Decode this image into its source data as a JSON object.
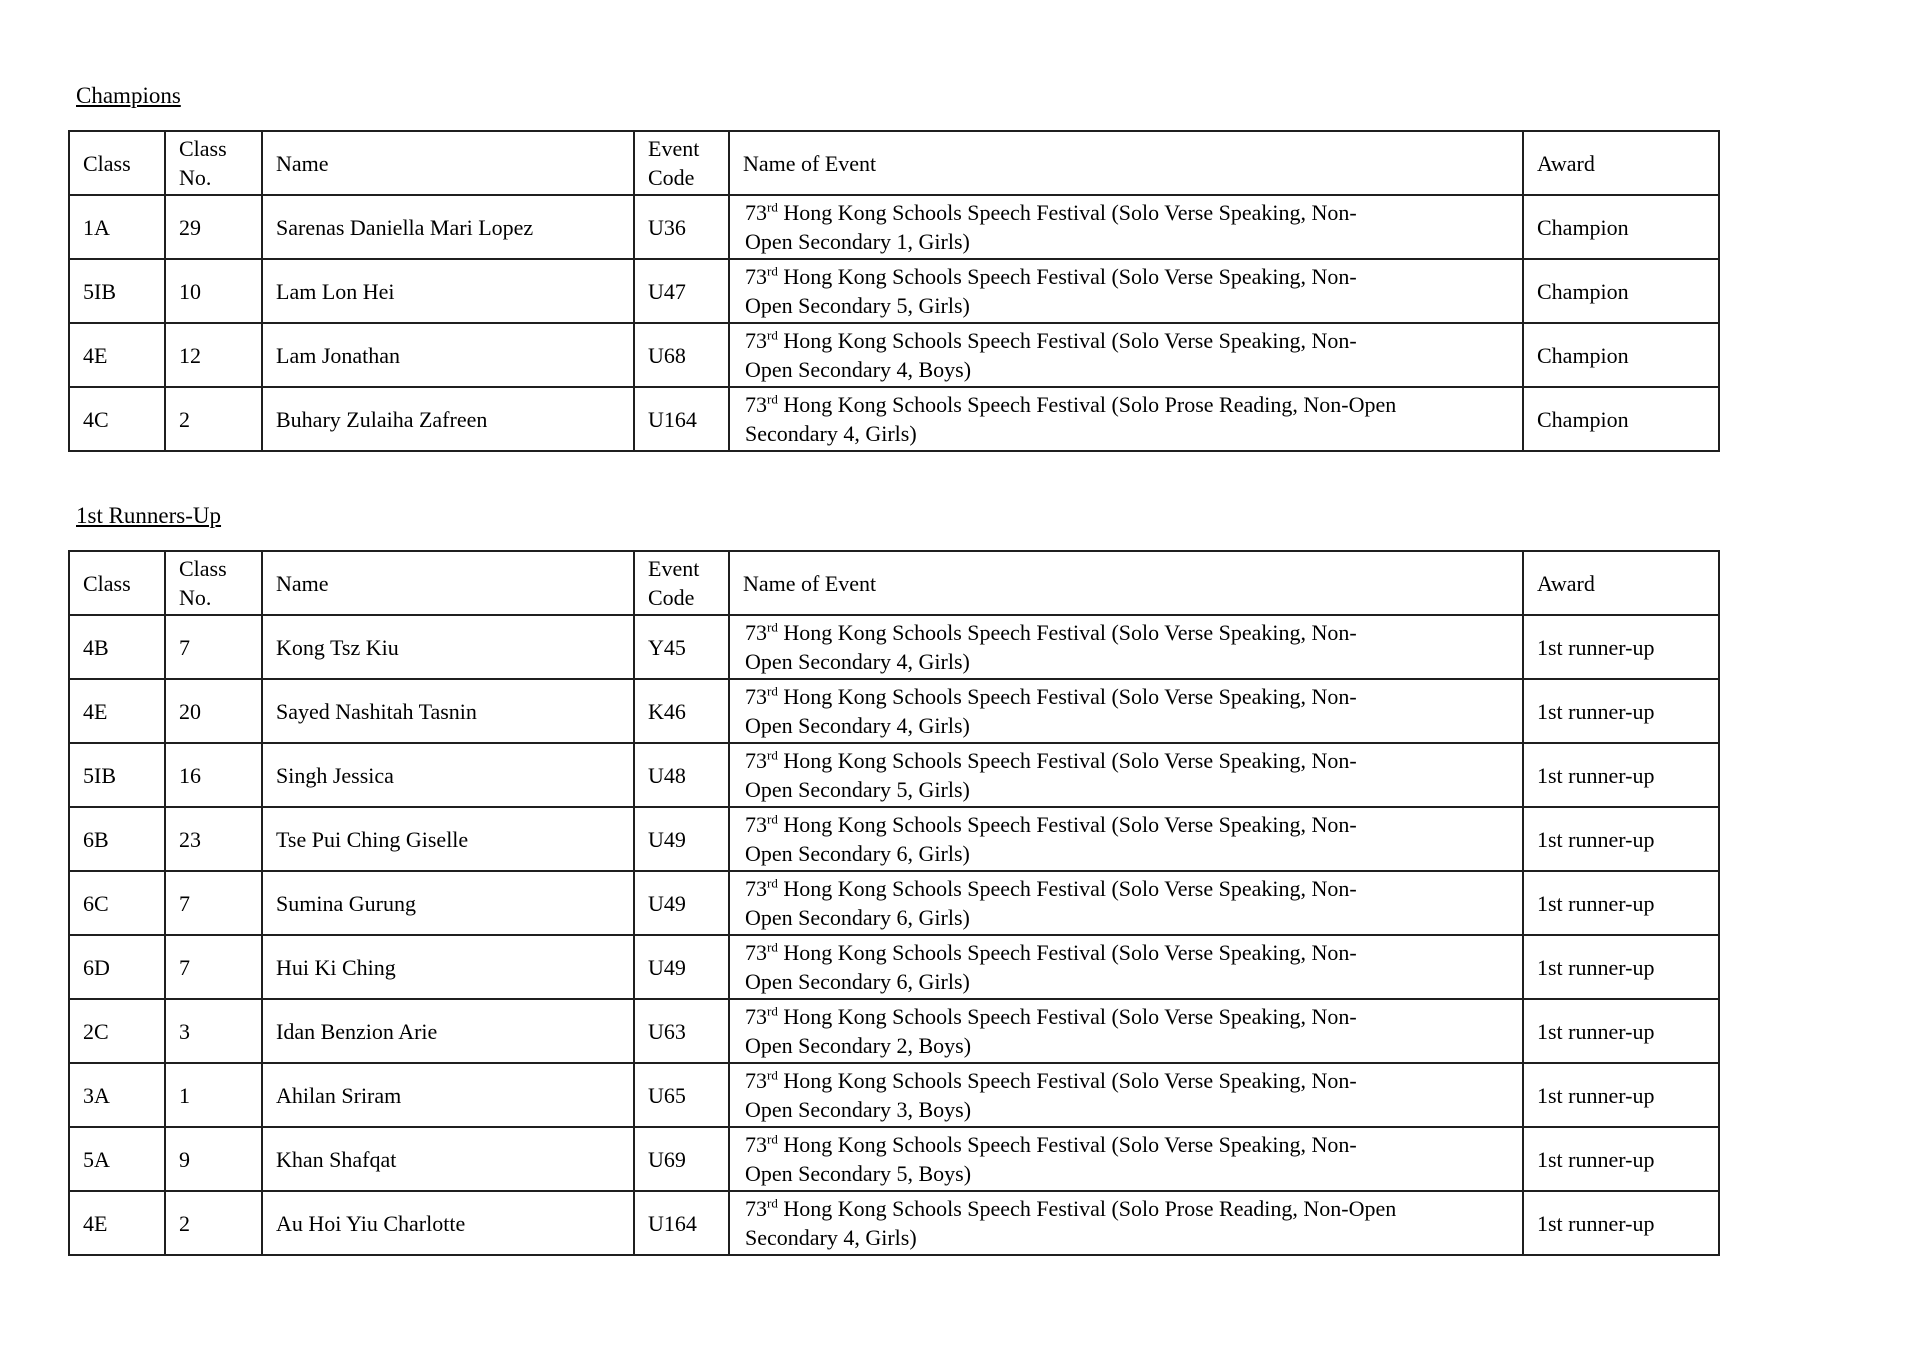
{
  "page_background": "#ffffff",
  "text_color": "#000000",
  "sections": [
    {
      "title": "Champions",
      "columns": [
        "Class",
        "Class No.",
        "Name",
        "Event Code",
        "Name of Event",
        "Award"
      ],
      "rows": [
        {
          "class": "1A",
          "class_no": "29",
          "name": "Sarenas Daniella Mari Lopez",
          "event_code": "U36",
          "event_num": "73",
          "event_sup": "rd",
          "event_line1": " Hong Kong Schools Speech Festival (Solo Verse Speaking, Non-",
          "event_line2": "Open Secondary 1, Girls)",
          "award": "Champion"
        },
        {
          "class": "5IB",
          "class_no": "10",
          "name": "Lam Lon Hei",
          "event_code": "U47",
          "event_num": "73",
          "event_sup": "rd",
          "event_line1": " Hong Kong Schools Speech Festival (Solo Verse Speaking, Non-",
          "event_line2": "Open Secondary 5, Girls)",
          "award": "Champion"
        },
        {
          "class": "4E",
          "class_no": "12",
          "name": "Lam Jonathan",
          "event_code": "U68",
          "event_num": "73",
          "event_sup": "rd",
          "event_line1": " Hong Kong Schools Speech Festival (Solo Verse Speaking, Non-",
          "event_line2": "Open Secondary 4, Boys)",
          "award": "Champion"
        },
        {
          "class": "4C",
          "class_no": "2",
          "name": "Buhary Zulaiha Zafreen",
          "event_code": "U164",
          "event_num": "73",
          "event_sup": "rd",
          "event_line1": " Hong Kong Schools Speech Festival (Solo Prose Reading, Non-Open",
          "event_line2": "Secondary 4, Girls)",
          "award": "Champion"
        }
      ]
    },
    {
      "title": "1st Runners-Up",
      "columns": [
        "Class",
        "Class No.",
        "Name",
        "Event Code",
        "Name of Event",
        "Award"
      ],
      "rows": [
        {
          "class": "4B",
          "class_no": "7",
          "name": "Kong Tsz Kiu",
          "event_code": "Y45",
          "event_num": "73",
          "event_sup": "rd",
          "event_line1": " Hong Kong Schools Speech Festival (Solo Verse Speaking, Non-",
          "event_line2": "Open Secondary 4, Girls)",
          "award": "1st runner-up"
        },
        {
          "class": "4E",
          "class_no": "20",
          "name": "Sayed Nashitah Tasnin",
          "event_code": "K46",
          "event_num": "73",
          "event_sup": "rd",
          "event_line1": " Hong Kong Schools Speech Festival (Solo Verse Speaking, Non-",
          "event_line2": "Open Secondary 4, Girls)",
          "award": "1st runner-up"
        },
        {
          "class": "5IB",
          "class_no": "16",
          "name": "Singh Jessica",
          "event_code": "U48",
          "event_num": "73",
          "event_sup": "rd",
          "event_line1": " Hong Kong Schools Speech Festival (Solo Verse Speaking, Non-",
          "event_line2": "Open Secondary 5, Girls)",
          "award": "1st runner-up"
        },
        {
          "class": "6B",
          "class_no": "23",
          "name": "Tse Pui Ching Giselle",
          "event_code": "U49",
          "event_num": "73",
          "event_sup": "rd",
          "event_line1": " Hong Kong Schools Speech Festival (Solo Verse Speaking, Non-",
          "event_line2": "Open Secondary 6, Girls)",
          "award": "1st runner-up"
        },
        {
          "class": "6C",
          "class_no": "7",
          "name": "Sumina Gurung",
          "event_code": "U49",
          "event_num": "73",
          "event_sup": "rd",
          "event_line1": " Hong Kong Schools Speech Festival (Solo Verse Speaking, Non-",
          "event_line2": "Open Secondary 6, Girls)",
          "award": "1st runner-up"
        },
        {
          "class": "6D",
          "class_no": "7",
          "name": "Hui Ki Ching",
          "event_code": "U49",
          "event_num": "73",
          "event_sup": "rd",
          "event_line1": " Hong Kong Schools Speech Festival (Solo Verse Speaking, Non-",
          "event_line2": "Open Secondary 6, Girls)",
          "award": "1st runner-up"
        },
        {
          "class": "2C",
          "class_no": "3",
          "name": "Idan Benzion Arie",
          "event_code": "U63",
          "event_num": "73",
          "event_sup": "rd",
          "event_line1": " Hong Kong Schools Speech Festival (Solo Verse Speaking, Non-",
          "event_line2": "Open Secondary 2, Boys)",
          "award": "1st runner-up"
        },
        {
          "class": "3A",
          "class_no": "1",
          "name": "Ahilan Sriram",
          "event_code": "U65",
          "event_num": "73",
          "event_sup": "rd",
          "event_line1": " Hong Kong Schools Speech Festival (Solo Verse Speaking, Non-",
          "event_line2": "Open Secondary 3, Boys)",
          "award": "1st runner-up"
        },
        {
          "class": "5A",
          "class_no": "9",
          "name": "Khan Shafqat",
          "event_code": "U69",
          "event_num": "73",
          "event_sup": "rd",
          "event_line1": " Hong Kong Schools Speech Festival (Solo Verse Speaking, Non-",
          "event_line2": "Open Secondary 5, Boys)",
          "award": "1st runner-up"
        },
        {
          "class": "4E",
          "class_no": "2",
          "name": "Au Hoi Yiu Charlotte",
          "event_code": "U164",
          "event_num": "73",
          "event_sup": "rd",
          "event_line1": " Hong Kong Schools Speech Festival (Solo Prose Reading, Non-Open",
          "event_line2": "Secondary 4, Girls)",
          "award": "1st runner-up"
        }
      ]
    }
  ]
}
